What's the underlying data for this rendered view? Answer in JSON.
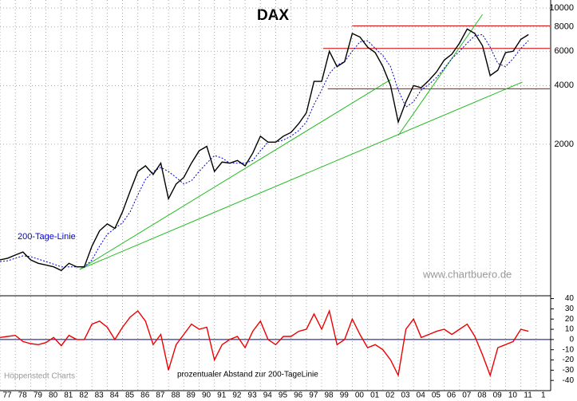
{
  "chart_data": [
    {
      "type": "line",
      "title": "DAX",
      "log_y": true,
      "grid": true,
      "x": [
        1977.0,
        1977.5,
        1978.0,
        1978.5,
        1979.0,
        1979.5,
        1980.0,
        1980.5,
        1981.0,
        1981.5,
        1982.0,
        1982.5,
        1983.0,
        1983.5,
        1984.0,
        1984.5,
        1985.0,
        1985.5,
        1986.0,
        1986.5,
        1987.0,
        1987.5,
        1988.0,
        1988.5,
        1989.0,
        1989.5,
        1990.0,
        1990.5,
        1991.0,
        1991.5,
        1992.0,
        1992.5,
        1993.0,
        1993.5,
        1994.0,
        1994.5,
        1995.0,
        1995.5,
        1996.0,
        1996.5,
        1997.0,
        1997.5,
        1998.0,
        1998.5,
        1999.0,
        1999.5,
        2000.0,
        2000.5,
        2001.0,
        2001.5,
        2002.0,
        2002.5,
        2003.0,
        2003.5,
        2004.0,
        2004.5,
        2005.0,
        2005.5,
        2006.0,
        2006.5,
        2007.0,
        2007.5,
        2008.0,
        2008.5,
        2009.0,
        2009.5,
        2010.0,
        2010.5,
        2011.0,
        2011.5
      ],
      "series": [
        {
          "color": "#000000",
          "values": [
            510,
            520,
            540,
            560,
            510,
            490,
            480,
            470,
            450,
            490,
            470,
            470,
            600,
            720,
            780,
            740,
            900,
            1150,
            1450,
            1550,
            1400,
            1600,
            1050,
            1250,
            1350,
            1600,
            1850,
            1950,
            1450,
            1620,
            1600,
            1650,
            1550,
            1800,
            2200,
            2050,
            2050,
            2200,
            2300,
            2550,
            2900,
            4200,
            4200,
            6000,
            5000,
            5300,
            7400,
            7100,
            6300,
            5900,
            5000,
            4000,
            2600,
            3300,
            4000,
            3900,
            4250,
            4700,
            5400,
            5800,
            6600,
            7800,
            7400,
            6400,
            4500,
            4800,
            5900,
            6000,
            6900,
            7300
          ]
        },
        {
          "name": "200-Tage-Linie",
          "color": "#0000cc",
          "dashed": true,
          "values": [
            500,
            505,
            520,
            535,
            530,
            515,
            500,
            485,
            470,
            470,
            470,
            468,
            510,
            600,
            690,
            740,
            790,
            900,
            1100,
            1320,
            1450,
            1520,
            1450,
            1350,
            1250,
            1300,
            1450,
            1600,
            1750,
            1700,
            1600,
            1600,
            1600,
            1650,
            1850,
            2050,
            2050,
            2100,
            2200,
            2350,
            2600,
            3200,
            3800,
            4600,
            5100,
            5300,
            6000,
            6700,
            6800,
            6200,
            5700,
            5000,
            3800,
            3100,
            3300,
            3800,
            4050,
            4400,
            4900,
            5500,
            6000,
            6600,
            7200,
            7300,
            6300,
            5200,
            5000,
            5500,
            6200,
            6800
          ]
        }
      ],
      "trend_lines": [
        {
          "color": "#cc0000",
          "x": [
            2000.0,
            2012.9
          ],
          "y": [
            8100,
            8100
          ]
        },
        {
          "color": "#cc0000",
          "x": [
            1998.1,
            2012.9
          ],
          "y": [
            6200,
            6200
          ]
        },
        {
          "color": "#cc0000",
          "x": [
            1998.4,
            2012.9
          ],
          "y": [
            3850,
            3850
          ]
        },
        {
          "color": "#22bb22",
          "x": [
            1982.2,
            2002.5
          ],
          "y": [
            456,
            4290
          ]
        },
        {
          "color": "#22bb22",
          "x": [
            1982.2,
            2011.1
          ],
          "y": [
            456,
            4170
          ]
        },
        {
          "color": "#22bb22",
          "x": [
            2003.0,
            2008.5
          ],
          "y": [
            2218,
            9270
          ]
        }
      ],
      "xlim": [
        1977,
        2012.95
      ],
      "ylim": [
        337,
        10990
      ],
      "yticks": [
        2000,
        4000,
        6000,
        8000,
        10000
      ],
      "xticks": [
        {
          "value": 1977,
          "label": "77"
        },
        {
          "value": 1978,
          "label": "78"
        },
        {
          "value": 1979,
          "label": "79"
        },
        {
          "value": 1980,
          "label": "80"
        },
        {
          "value": 1981,
          "label": "81"
        },
        {
          "value": 1982,
          "label": "82"
        },
        {
          "value": 1983,
          "label": "83"
        },
        {
          "value": 1984,
          "label": "84"
        },
        {
          "value": 1985,
          "label": "85"
        },
        {
          "value": 1986,
          "label": "86"
        },
        {
          "value": 1987,
          "label": "87"
        },
        {
          "value": 1988,
          "label": "88"
        },
        {
          "value": 1989,
          "label": "89"
        },
        {
          "value": 1990,
          "label": "90"
        },
        {
          "value": 1991,
          "label": "91"
        },
        {
          "value": 1992,
          "label": "92"
        },
        {
          "value": 1993,
          "label": "93"
        },
        {
          "value": 1994,
          "label": "94"
        },
        {
          "value": 1995,
          "label": "95"
        },
        {
          "value": 1996,
          "label": "96"
        },
        {
          "value": 1997,
          "label": "97"
        },
        {
          "value": 1998,
          "label": "98"
        },
        {
          "value": 1999,
          "label": "99"
        },
        {
          "value": 2000,
          "label": "00"
        },
        {
          "value": 2001,
          "label": "01"
        },
        {
          "value": 2002,
          "label": "02"
        },
        {
          "value": 2003,
          "label": "03"
        },
        {
          "value": 2004,
          "label": "04"
        },
        {
          "value": 2005,
          "label": "05"
        },
        {
          "value": 2006,
          "label": "06"
        },
        {
          "value": 2007,
          "label": "07"
        },
        {
          "value": 2008,
          "label": "08"
        },
        {
          "value": 2009,
          "label": "09"
        },
        {
          "value": 2010,
          "label": "10"
        },
        {
          "value": 2011,
          "label": "11"
        },
        {
          "value": 2012,
          "label": "1"
        }
      ],
      "annotations": [
        "www.chartbuero.de",
        "Höppenstedt Charts"
      ]
    },
    {
      "type": "line",
      "title": "prozentualer Abstand zur 200-TageLinie",
      "x": [
        1977.0,
        1977.5,
        1978.0,
        1978.5,
        1979.0,
        1979.5,
        1980.0,
        1980.5,
        1981.0,
        1981.5,
        1982.0,
        1982.5,
        1983.0,
        1983.5,
        1984.0,
        1984.5,
        1985.0,
        1985.5,
        1986.0,
        1986.5,
        1987.0,
        1987.5,
        1988.0,
        1988.5,
        1989.0,
        1989.5,
        1990.0,
        1990.5,
        1991.0,
        1991.5,
        1992.0,
        1992.5,
        1993.0,
        1993.5,
        1994.0,
        1994.5,
        1995.0,
        1995.5,
        1996.0,
        1996.5,
        1997.0,
        1997.5,
        1998.0,
        1998.5,
        1999.0,
        1999.5,
        2000.0,
        2000.5,
        2001.0,
        2001.5,
        2002.0,
        2002.5,
        2003.0,
        2003.5,
        2004.0,
        2004.5,
        2005.0,
        2005.5,
        2006.0,
        2006.5,
        2007.0,
        2007.5,
        2008.0,
        2008.5,
        2009.0,
        2009.5,
        2010.0,
        2010.5,
        2011.0,
        2011.5
      ],
      "series": [
        {
          "color": "#ee0000",
          "values": [
            2,
            3,
            4,
            -2,
            -4,
            -5,
            -3,
            2,
            -6,
            4,
            0,
            0,
            15,
            18,
            12,
            0,
            12,
            22,
            28,
            18,
            -5,
            5,
            -30,
            -5,
            5,
            15,
            10,
            12,
            -20,
            -5,
            0,
            3,
            -8,
            8,
            18,
            0,
            -5,
            3,
            3,
            8,
            10,
            25,
            10,
            28,
            -5,
            0,
            20,
            5,
            -8,
            -5,
            -10,
            -20,
            -35,
            10,
            20,
            2,
            5,
            8,
            10,
            5,
            10,
            15,
            3,
            -15,
            -35,
            -8,
            -5,
            -2,
            10,
            8
          ]
        }
      ],
      "zero_line_color": "#000099",
      "xlim": [
        1977,
        2012.95
      ],
      "ylim": [
        -50,
        42
      ],
      "yticks": [
        40,
        30,
        20,
        10,
        0,
        -10,
        -20,
        -30,
        -40
      ]
    }
  ]
}
